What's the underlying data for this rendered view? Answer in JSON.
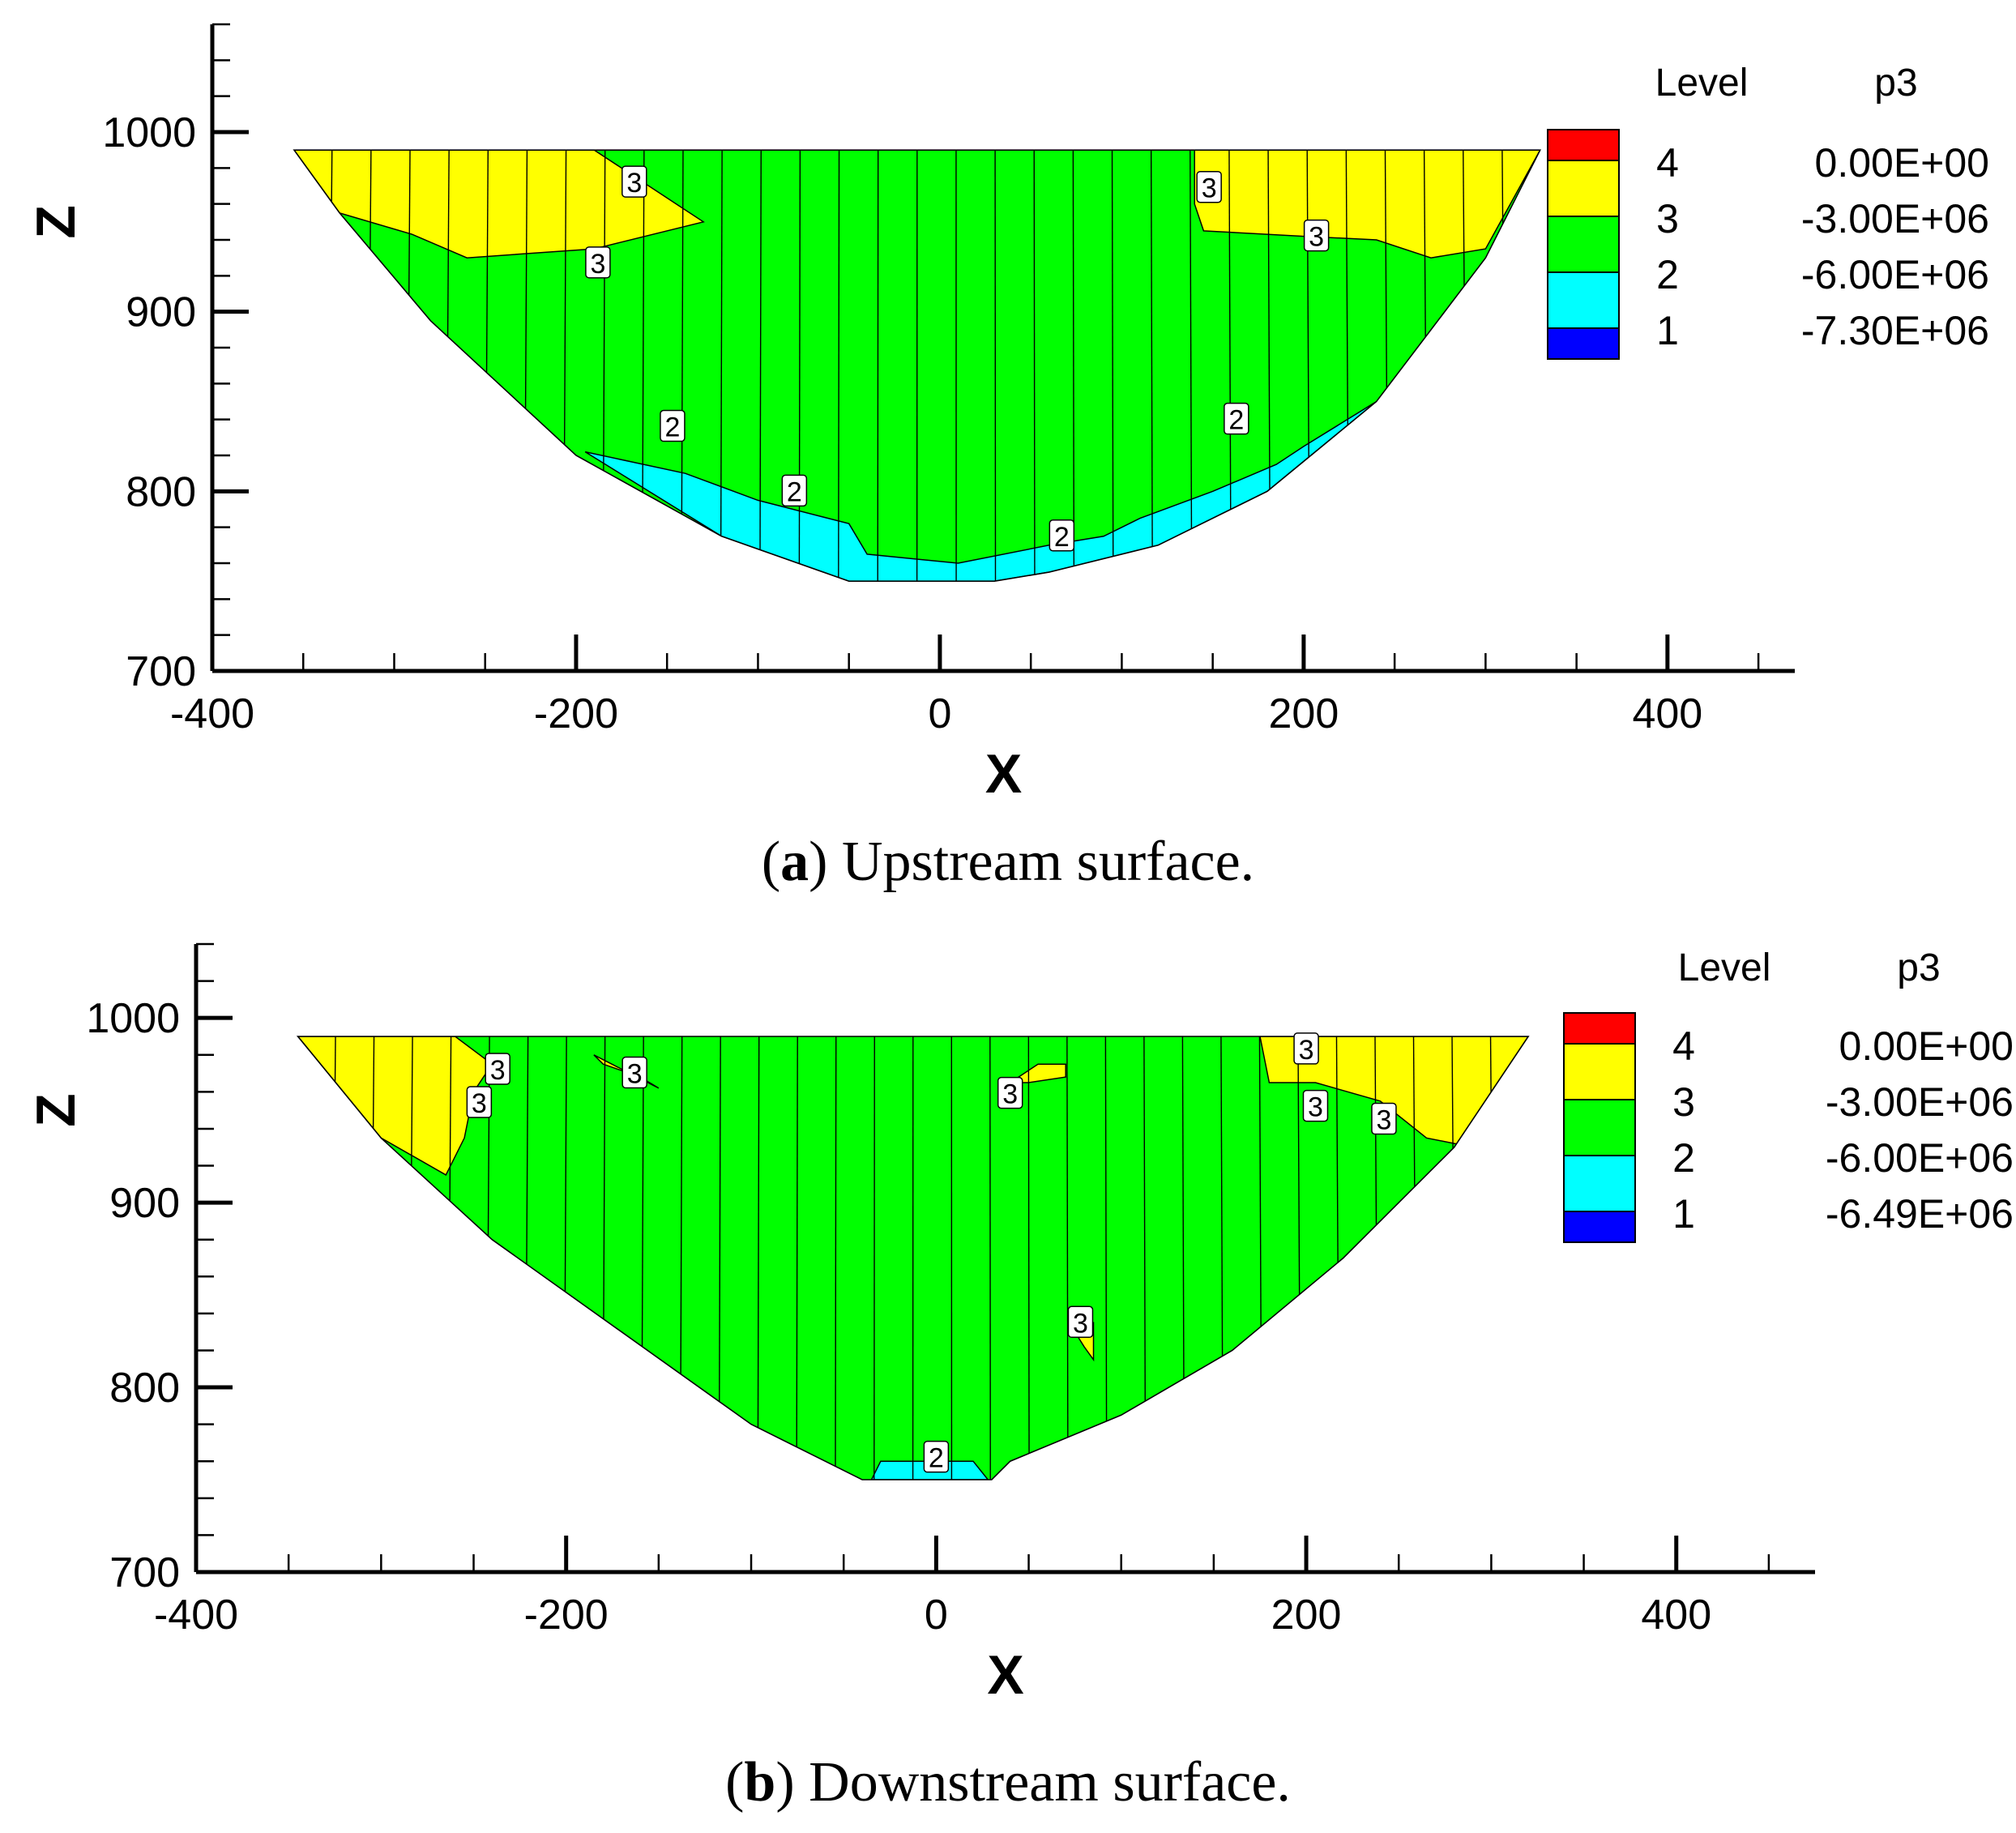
{
  "chart_data": [
    {
      "type": "contour",
      "caption_letter": "a",
      "caption_text": ") Upstream surface.",
      "caption_open": "(",
      "xlabel": "X",
      "ylabel": "Z",
      "xlim": [
        -400,
        470
      ],
      "ylim": [
        700,
        1060
      ],
      "x_ticks": [
        -400,
        -200,
        0,
        200,
        400
      ],
      "y_ticks": [
        700,
        800,
        900,
        1000
      ],
      "legend": {
        "header_level": "Level",
        "header_var": "p3",
        "entries": [
          {
            "level": "4",
            "value": "0.00E+00",
            "color": "#ff0000"
          },
          {
            "level": "3",
            "value": "-3.00E+06",
            "color": "#ffff00"
          },
          {
            "level": "2",
            "value": "-6.00E+06",
            "color": "#00ff00"
          },
          {
            "level": "1",
            "value": "-7.30E+06",
            "color": "#00ffff"
          },
          {
            "level": "",
            "value": "",
            "color": "#0000ff"
          }
        ]
      },
      "domain_outline": [
        [
          -355,
          990
        ],
        [
          330,
          990
        ],
        [
          300,
          930
        ],
        [
          240,
          850
        ],
        [
          180,
          800
        ],
        [
          120,
          770
        ],
        [
          60,
          755
        ],
        [
          30,
          750
        ],
        [
          -50,
          750
        ],
        [
          -120,
          775
        ],
        [
          -200,
          820
        ],
        [
          -280,
          895
        ],
        [
          -330,
          955
        ],
        [
          -355,
          990
        ]
      ],
      "yellow_regions": [
        [
          [
            -355,
            990
          ],
          [
            -190,
            990
          ],
          [
            -130,
            950
          ],
          [
            -190,
            935
          ],
          [
            -260,
            930
          ],
          [
            -290,
            943
          ],
          [
            -330,
            955
          ],
          [
            -355,
            990
          ]
        ],
        [
          [
            140,
            990
          ],
          [
            330,
            990
          ],
          [
            300,
            935
          ],
          [
            270,
            930
          ],
          [
            240,
            940
          ],
          [
            200,
            942
          ],
          [
            145,
            945
          ],
          [
            140,
            960
          ],
          [
            140,
            990
          ]
        ]
      ],
      "cyan_regions": [
        [
          [
            -195,
            822
          ],
          [
            -140,
            810
          ],
          [
            -100,
            795
          ],
          [
            -50,
            782
          ],
          [
            -40,
            765
          ],
          [
            10,
            760
          ],
          [
            60,
            770
          ],
          [
            90,
            775
          ],
          [
            110,
            785
          ],
          [
            150,
            800
          ],
          [
            185,
            815
          ],
          [
            200,
            825
          ],
          [
            240,
            850
          ],
          [
            180,
            800
          ],
          [
            120,
            770
          ],
          [
            60,
            755
          ],
          [
            30,
            750
          ],
          [
            -50,
            750
          ],
          [
            -120,
            775
          ],
          [
            -195,
            822
          ]
        ]
      ],
      "contour_labels": [
        {
          "x": -168,
          "y": 972,
          "text": "3"
        },
        {
          "x": -188,
          "y": 927,
          "text": "3"
        },
        {
          "x": 148,
          "y": 969,
          "text": "3"
        },
        {
          "x": 207,
          "y": 942,
          "text": "3"
        },
        {
          "x": -147,
          "y": 836,
          "text": "2"
        },
        {
          "x": -80,
          "y": 800,
          "text": "2"
        },
        {
          "x": 67,
          "y": 775,
          "text": "2"
        },
        {
          "x": 163,
          "y": 840,
          "text": "2"
        }
      ]
    },
    {
      "type": "contour",
      "caption_letter": "b",
      "caption_text": ") Downstream surface.",
      "caption_open": "(",
      "xlabel": "X",
      "ylabel": "Z",
      "xlim": [
        -400,
        475
      ],
      "ylim": [
        700,
        1040
      ],
      "x_ticks": [
        -400,
        -200,
        0,
        200,
        400
      ],
      "y_ticks": [
        700,
        800,
        900,
        1000
      ],
      "legend": {
        "header_level": "Level",
        "header_var": "p3",
        "entries": [
          {
            "level": "4",
            "value": "0.00E+00",
            "color": "#ff0000"
          },
          {
            "level": "3",
            "value": "-3.00E+06",
            "color": "#ffff00"
          },
          {
            "level": "2",
            "value": "-6.00E+06",
            "color": "#00ff00"
          },
          {
            "level": "1",
            "value": "-6.49E+06",
            "color": "#00ffff"
          },
          {
            "level": "",
            "value": "",
            "color": "#0000ff"
          }
        ]
      },
      "domain_outline": [
        [
          -345,
          990
        ],
        [
          320,
          990
        ],
        [
          280,
          930
        ],
        [
          220,
          870
        ],
        [
          160,
          820
        ],
        [
          100,
          785
        ],
        [
          40,
          760
        ],
        [
          30,
          750
        ],
        [
          -40,
          750
        ],
        [
          -100,
          780
        ],
        [
          -170,
          830
        ],
        [
          -240,
          880
        ],
        [
          -300,
          935
        ],
        [
          -345,
          990
        ]
      ],
      "yellow_regions": [
        [
          [
            -345,
            990
          ],
          [
            -260,
            990
          ],
          [
            -240,
            975
          ],
          [
            -250,
            960
          ],
          [
            -255,
            935
          ],
          [
            -265,
            915
          ],
          [
            -300,
            935
          ],
          [
            -345,
            990
          ]
        ],
        [
          [
            -180,
            975
          ],
          [
            -160,
            968
          ],
          [
            -150,
            962
          ],
          [
            -185,
            980
          ],
          [
            -180,
            975
          ]
        ],
        [
          [
            40,
            965
          ],
          [
            55,
            975
          ],
          [
            70,
            975
          ],
          [
            70,
            968
          ],
          [
            50,
            965
          ],
          [
            40,
            965
          ]
        ],
        [
          [
            175,
            990
          ],
          [
            320,
            990
          ],
          [
            290,
            930
          ],
          [
            265,
            935
          ],
          [
            240,
            955
          ],
          [
            205,
            965
          ],
          [
            180,
            965
          ],
          [
            175,
            990
          ]
        ],
        [
          [
            75,
            830
          ],
          [
            85,
            835
          ],
          [
            85,
            815
          ],
          [
            80,
            822
          ],
          [
            75,
            830
          ]
        ]
      ],
      "cyan_regions": [
        [
          [
            -35,
            750
          ],
          [
            28,
            750
          ],
          [
            20,
            760
          ],
          [
            0,
            760
          ],
          [
            -30,
            760
          ],
          [
            -35,
            750
          ]
        ]
      ],
      "contour_labels": [
        {
          "x": -237,
          "y": 972,
          "text": "3"
        },
        {
          "x": -247,
          "y": 954,
          "text": "3"
        },
        {
          "x": -163,
          "y": 970,
          "text": "3"
        },
        {
          "x": 40,
          "y": 959,
          "text": "3"
        },
        {
          "x": 200,
          "y": 983,
          "text": "3"
        },
        {
          "x": 205,
          "y": 952,
          "text": "3"
        },
        {
          "x": 242,
          "y": 945,
          "text": "3"
        },
        {
          "x": 78,
          "y": 835,
          "text": "3"
        },
        {
          "x": 0,
          "y": 762,
          "text": "2"
        }
      ]
    }
  ]
}
